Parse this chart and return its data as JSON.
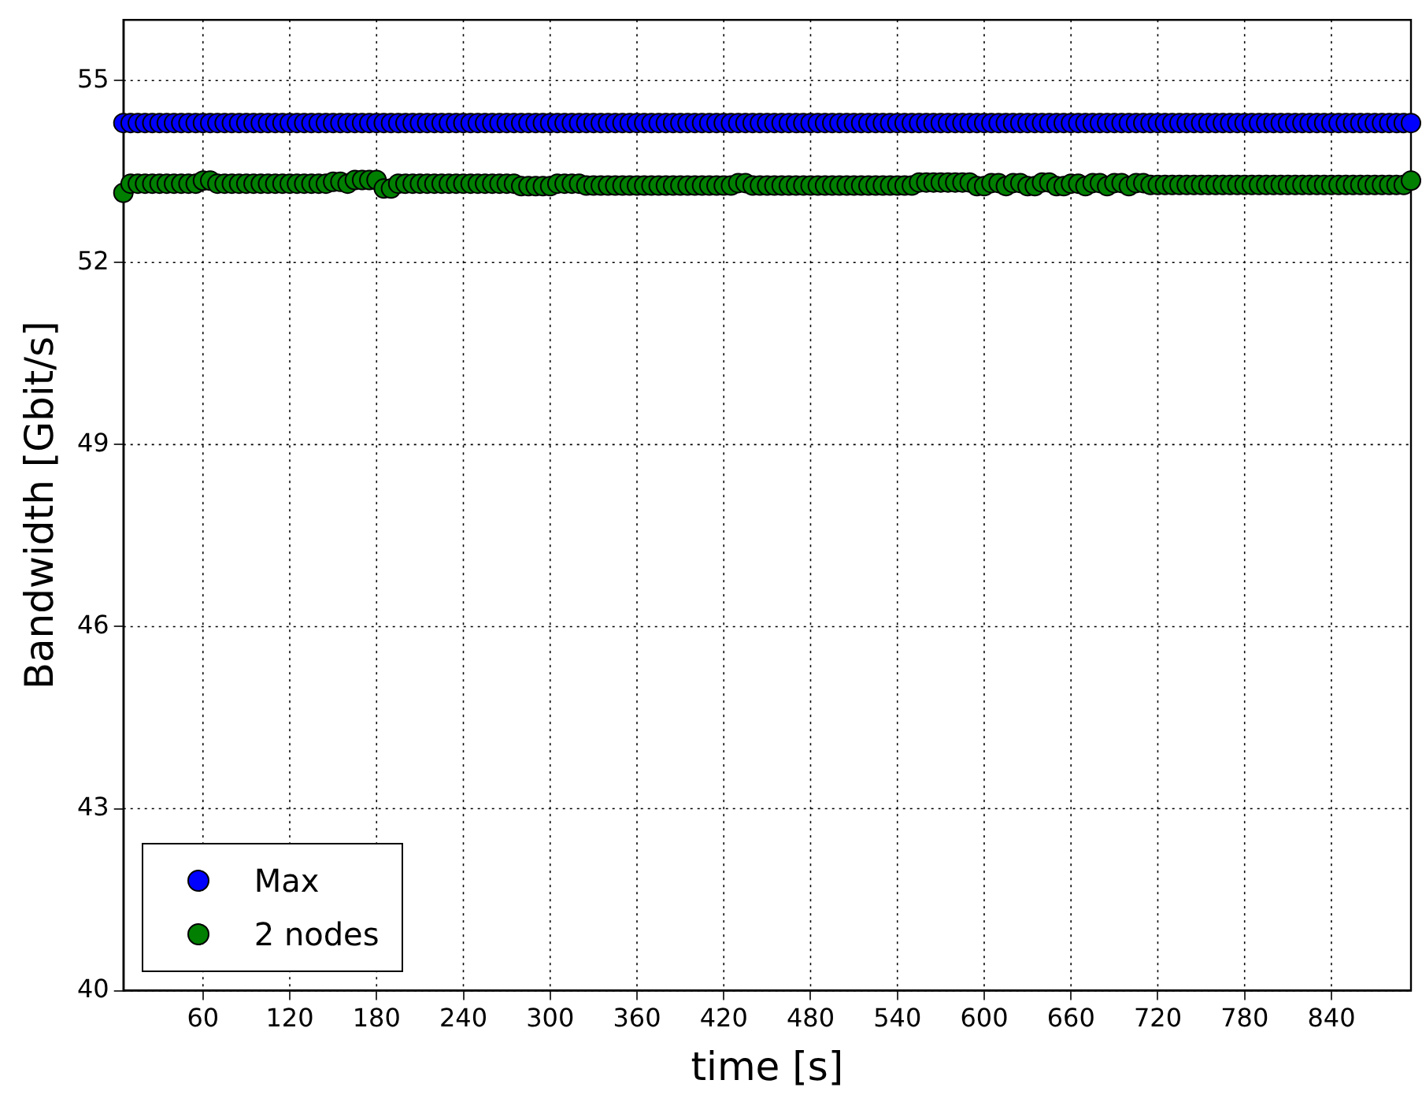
{
  "chart_data": {
    "type": "scatter",
    "xlabel": "time [s]",
    "ylabel": "Bandwidth [Gbit/s]",
    "x": [
      5,
      10,
      15,
      20,
      25,
      30,
      35,
      40,
      45,
      50,
      55,
      60,
      65,
      70,
      75,
      80,
      85,
      90,
      95,
      100,
      105,
      110,
      115,
      120,
      125,
      130,
      135,
      140,
      145,
      150,
      155,
      160,
      165,
      170,
      175,
      180,
      185,
      190,
      195,
      200,
      205,
      210,
      215,
      220,
      225,
      230,
      235,
      240,
      245,
      250,
      255,
      260,
      265,
      270,
      275,
      280,
      285,
      290,
      295,
      300,
      305,
      310,
      315,
      320,
      325,
      330,
      335,
      340,
      345,
      350,
      355,
      360,
      365,
      370,
      375,
      380,
      385,
      390,
      395,
      400,
      405,
      410,
      415,
      420,
      425,
      430,
      435,
      440,
      445,
      450,
      455,
      460,
      465,
      470,
      475,
      480,
      485,
      490,
      495,
      500,
      505,
      510,
      515,
      520,
      525,
      530,
      535,
      540,
      545,
      550,
      555,
      560,
      565,
      570,
      575,
      580,
      585,
      590,
      595,
      600,
      605,
      610,
      615,
      620,
      625,
      630,
      635,
      640,
      645,
      650,
      655,
      660,
      665,
      670,
      675,
      680,
      685,
      690,
      695,
      700,
      705,
      710,
      715,
      720,
      725,
      730,
      735,
      740,
      745,
      750,
      755,
      760,
      765,
      770,
      775,
      780,
      785,
      790,
      795,
      800,
      805,
      810,
      815,
      820,
      825,
      830,
      835,
      840,
      845,
      850,
      855,
      860,
      865,
      870,
      875,
      880,
      885,
      890,
      895
    ],
    "series": [
      {
        "name": "Max",
        "color": "#0000ff",
        "values": [
          54.3,
          54.3,
          54.3,
          54.3,
          54.3,
          54.3,
          54.3,
          54.3,
          54.3,
          54.3,
          54.3,
          54.3,
          54.3,
          54.3,
          54.3,
          54.3,
          54.3,
          54.3,
          54.3,
          54.3,
          54.3,
          54.3,
          54.3,
          54.3,
          54.3,
          54.3,
          54.3,
          54.3,
          54.3,
          54.3,
          54.3,
          54.3,
          54.3,
          54.3,
          54.3,
          54.3,
          54.3,
          54.3,
          54.3,
          54.3,
          54.3,
          54.3,
          54.3,
          54.3,
          54.3,
          54.3,
          54.3,
          54.3,
          54.3,
          54.3,
          54.3,
          54.3,
          54.3,
          54.3,
          54.3,
          54.3,
          54.3,
          54.3,
          54.3,
          54.3,
          54.3,
          54.3,
          54.3,
          54.3,
          54.3,
          54.3,
          54.3,
          54.3,
          54.3,
          54.3,
          54.3,
          54.3,
          54.3,
          54.3,
          54.3,
          54.3,
          54.3,
          54.3,
          54.3,
          54.3,
          54.3,
          54.3,
          54.3,
          54.3,
          54.3,
          54.3,
          54.3,
          54.3,
          54.3,
          54.3,
          54.3,
          54.3,
          54.3,
          54.3,
          54.3,
          54.3,
          54.3,
          54.3,
          54.3,
          54.3,
          54.3,
          54.3,
          54.3,
          54.3,
          54.3,
          54.3,
          54.3,
          54.3,
          54.3,
          54.3,
          54.3,
          54.3,
          54.3,
          54.3,
          54.3,
          54.3,
          54.3,
          54.3,
          54.3,
          54.3,
          54.3,
          54.3,
          54.3,
          54.3,
          54.3,
          54.3,
          54.3,
          54.3,
          54.3,
          54.3,
          54.3,
          54.3,
          54.3,
          54.3,
          54.3,
          54.3,
          54.3,
          54.3,
          54.3,
          54.3,
          54.3,
          54.3,
          54.3,
          54.3,
          54.3,
          54.3,
          54.3,
          54.3,
          54.3,
          54.3,
          54.3,
          54.3,
          54.3,
          54.3,
          54.3,
          54.3,
          54.3,
          54.3,
          54.3,
          54.3,
          54.3,
          54.3,
          54.3,
          54.3,
          54.3,
          54.3,
          54.3,
          54.3,
          54.3,
          54.3,
          54.3,
          54.3,
          54.3,
          54.3,
          54.3,
          54.3,
          54.3,
          54.3,
          54.3
        ]
      },
      {
        "name": "2 nodes",
        "color": "#007f00",
        "values": [
          53.15,
          53.3,
          53.3,
          53.3,
          53.3,
          53.3,
          53.3,
          53.3,
          53.3,
          53.3,
          53.3,
          53.35,
          53.35,
          53.3,
          53.3,
          53.3,
          53.3,
          53.3,
          53.3,
          53.3,
          53.3,
          53.3,
          53.3,
          53.3,
          53.3,
          53.3,
          53.3,
          53.3,
          53.3,
          53.33,
          53.33,
          53.3,
          53.36,
          53.36,
          53.36,
          53.36,
          53.22,
          53.22,
          53.3,
          53.3,
          53.3,
          53.3,
          53.3,
          53.3,
          53.3,
          53.3,
          53.3,
          53.3,
          53.3,
          53.3,
          53.3,
          53.3,
          53.3,
          53.3,
          53.3,
          53.26,
          53.26,
          53.26,
          53.26,
          53.26,
          53.3,
          53.3,
          53.3,
          53.3,
          53.27,
          53.27,
          53.27,
          53.27,
          53.27,
          53.27,
          53.27,
          53.27,
          53.27,
          53.27,
          53.27,
          53.27,
          53.27,
          53.27,
          53.27,
          53.27,
          53.27,
          53.27,
          53.27,
          53.27,
          53.27,
          53.31,
          53.31,
          53.27,
          53.27,
          53.27,
          53.27,
          53.27,
          53.27,
          53.27,
          53.27,
          53.27,
          53.27,
          53.27,
          53.27,
          53.27,
          53.27,
          53.27,
          53.27,
          53.27,
          53.27,
          53.27,
          53.27,
          53.27,
          53.27,
          53.27,
          53.32,
          53.32,
          53.32,
          53.32,
          53.32,
          53.32,
          53.32,
          53.32,
          53.26,
          53.26,
          53.31,
          53.31,
          53.26,
          53.31,
          53.31,
          53.26,
          53.26,
          53.32,
          53.32,
          53.26,
          53.26,
          53.3,
          53.3,
          53.26,
          53.31,
          53.31,
          53.26,
          53.31,
          53.31,
          53.26,
          53.31,
          53.31,
          53.28,
          53.28,
          53.28,
          53.28,
          53.28,
          53.28,
          53.28,
          53.28,
          53.28,
          53.28,
          53.28,
          53.28,
          53.28,
          53.28,
          53.28,
          53.28,
          53.28,
          53.28,
          53.28,
          53.28,
          53.28,
          53.28,
          53.28,
          53.28,
          53.28,
          53.28,
          53.28,
          53.28,
          53.28,
          53.28,
          53.28,
          53.28,
          53.28,
          53.28,
          53.28,
          53.28,
          53.35
        ]
      }
    ],
    "xlim": [
      5,
      895
    ],
    "xticks": [
      60,
      120,
      180,
      240,
      300,
      360,
      420,
      480,
      540,
      600,
      660,
      720,
      780,
      840
    ],
    "ylim": [
      40,
      56
    ],
    "yticks": [
      40,
      43,
      46,
      49,
      52,
      55
    ],
    "grid": true,
    "legend": "bottom left",
    "marker": "circle"
  }
}
